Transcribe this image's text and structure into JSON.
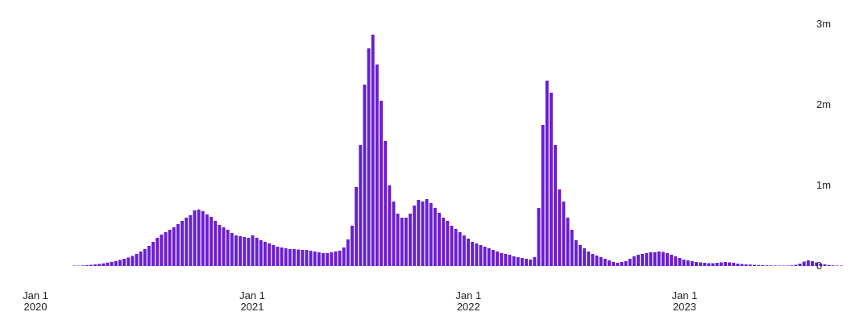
{
  "chart_data": {
    "type": "bar",
    "title": "",
    "xlabel": "",
    "ylabel": "",
    "bar_color": "#6a1fd1",
    "grid": false,
    "legend": "none",
    "y_axis_position": "right",
    "ylim": [
      0,
      3000000
    ],
    "y_ticks": [
      {
        "value": 3000000,
        "label": "3m"
      },
      {
        "value": 2000000,
        "label": "2m"
      },
      {
        "value": 1000000,
        "label": "1m"
      },
      {
        "value": 0,
        "label": "0"
      }
    ],
    "x_ticks": [
      {
        "date": "2020-01-01",
        "line1": "Jan 1",
        "line2": "2020"
      },
      {
        "date": "2021-01-01",
        "line1": "Jan 1",
        "line2": "2021"
      },
      {
        "date": "2022-01-01",
        "line1": "Jan 1",
        "line2": "2022"
      },
      {
        "date": "2023-01-01",
        "line1": "Jan 1",
        "line2": "2023"
      }
    ],
    "series": [
      {
        "interval": "weekly",
        "start": "2020-03-04",
        "values": [
          2000,
          4000,
          7000,
          10000,
          15000,
          20000,
          26000,
          33000,
          42000,
          52000,
          63000,
          75000,
          90000,
          105000,
          125000,
          150000,
          180000,
          210000,
          250000,
          300000,
          350000,
          390000,
          420000,
          450000,
          480000,
          520000,
          560000,
          600000,
          630000,
          690000,
          700000,
          680000,
          640000,
          610000,
          560000,
          510000,
          480000,
          450000,
          410000,
          380000,
          370000,
          360000,
          350000,
          380000,
          350000,
          320000,
          300000,
          280000,
          260000,
          240000,
          230000,
          220000,
          210000,
          210000,
          205000,
          200000,
          200000,
          190000,
          180000,
          170000,
          160000,
          160000,
          170000,
          180000,
          190000,
          230000,
          330000,
          500000,
          980000,
          1500000,
          2250000,
          2700000,
          2870000,
          2500000,
          2050000,
          1550000,
          1000000,
          800000,
          650000,
          600000,
          600000,
          650000,
          750000,
          820000,
          800000,
          830000,
          780000,
          720000,
          660000,
          600000,
          560000,
          500000,
          460000,
          420000,
          380000,
          340000,
          300000,
          280000,
          260000,
          240000,
          220000,
          200000,
          180000,
          160000,
          150000,
          140000,
          120000,
          110000,
          100000,
          90000,
          80000,
          110000,
          720000,
          1750000,
          2300000,
          2150000,
          1500000,
          950000,
          800000,
          600000,
          450000,
          320000,
          260000,
          220000,
          180000,
          150000,
          130000,
          110000,
          90000,
          70000,
          50000,
          40000,
          50000,
          60000,
          90000,
          120000,
          140000,
          150000,
          160000,
          170000,
          170000,
          180000,
          175000,
          160000,
          140000,
          120000,
          100000,
          80000,
          70000,
          60000,
          50000,
          45000,
          40000,
          35000,
          35000,
          40000,
          45000,
          50000,
          45000,
          40000,
          30000,
          25000,
          20000,
          18000,
          15000,
          12000,
          10000,
          8000,
          7000,
          6000,
          5000,
          5000,
          5000,
          8000,
          15000,
          30000,
          55000,
          70000,
          60000,
          45000,
          30000,
          20000,
          12000,
          8000,
          5000,
          3000
        ]
      }
    ]
  }
}
